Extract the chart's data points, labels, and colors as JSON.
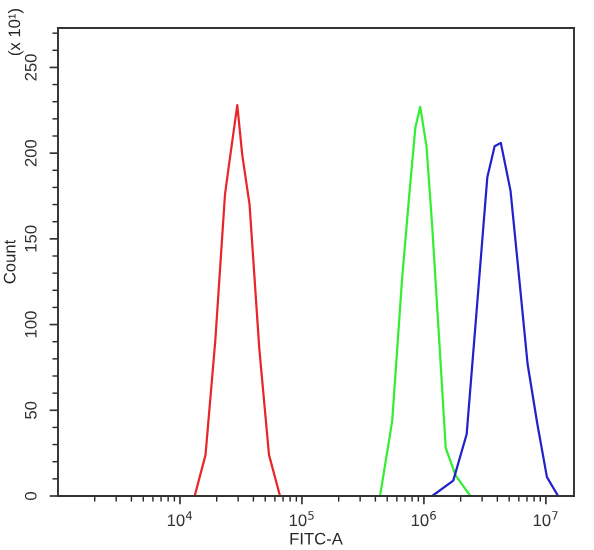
{
  "chart_data": {
    "type": "line",
    "xlabel": "FITC-A",
    "ylabel": "Count",
    "annotations": [
      "(x 10¹)"
    ],
    "log": "x",
    "xlim": [
      1000,
      17000000
    ],
    "xticks": [
      {
        "value": 10000,
        "label": "10$^{4}$"
      },
      {
        "value": 100000,
        "label": "10$^{5}$"
      },
      {
        "value": 1000000,
        "label": "10$^{6}$"
      },
      {
        "value": 10000000,
        "label": "10$^{7}$"
      }
    ],
    "ylim": [
      0,
      273
    ],
    "yticks": [
      0,
      50,
      100,
      150,
      200,
      250
    ],
    "grid": false,
    "legend": false,
    "marker": "none",
    "line_style": "solid",
    "series": [
      {
        "color": "#e8262a",
        "x": [
          13200,
          16200,
          19500,
          23400,
          25100,
          29500,
          32400,
          37200,
          44700,
          53700,
          66100
        ],
        "values": [
          0,
          24,
          91,
          176,
          192,
          228,
          199,
          170,
          86,
          24,
          0
        ]
      },
      {
        "color": "#33ee33",
        "x": [
          437000,
          550000,
          661000,
          759000,
          851000,
          933000,
          1050000,
          1170000,
          1350000,
          1510000,
          1820000,
          2400000
        ],
        "values": [
          0,
          44,
          126,
          176,
          215,
          227,
          204,
          157,
          85,
          28,
          12,
          0
        ]
      },
      {
        "color": "#2222cc",
        "x": [
          1170000,
          1740000,
          2240000,
          2690000,
          3310000,
          3800000,
          4270000,
          5130000,
          5890000,
          7080000,
          8510000,
          10200000,
          12600000
        ],
        "values": [
          0,
          9,
          36,
          106,
          186,
          204,
          206,
          178,
          135,
          77,
          42,
          11,
          0
        ]
      }
    ]
  }
}
